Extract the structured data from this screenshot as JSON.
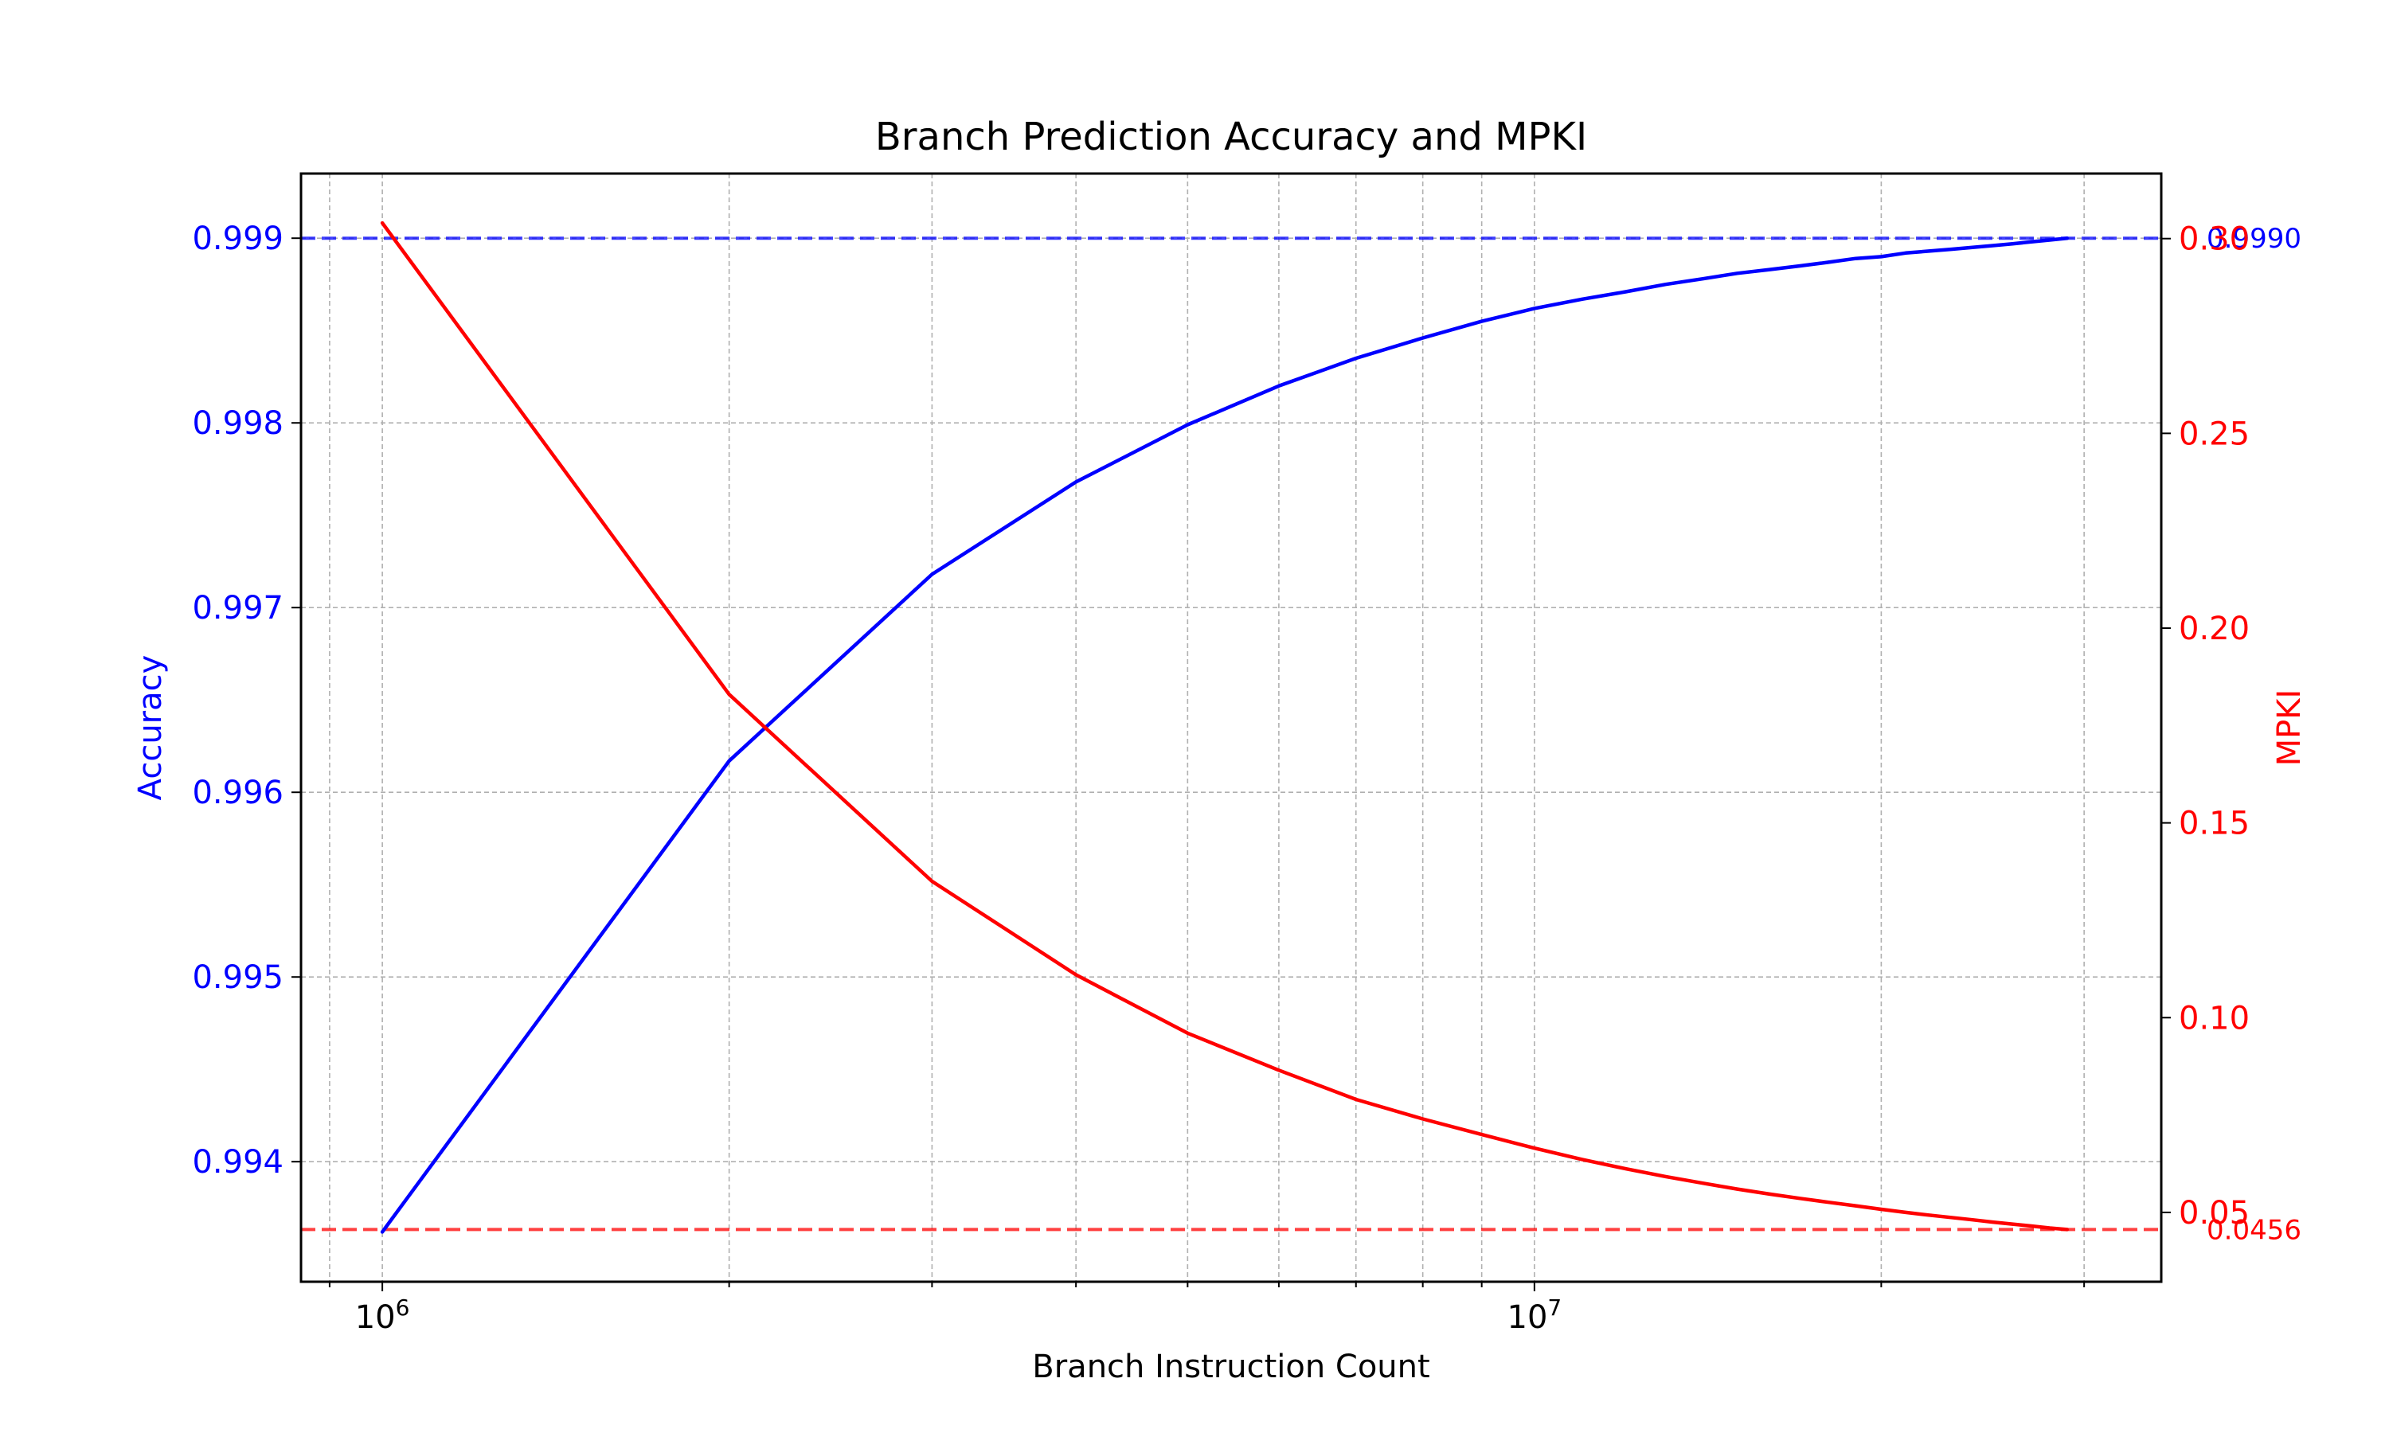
{
  "chart_data": {
    "type": "line",
    "title": "Branch Prediction Accuracy and MPKI",
    "xlabel": "Branch Instruction Count",
    "xscale": "log",
    "xlim": [
      850000,
      35000000
    ],
    "x_ticks": [
      {
        "value": 1000000,
        "base": "10",
        "exp": "6"
      },
      {
        "value": 10000000,
        "base": "10",
        "exp": "7"
      }
    ],
    "grid": true,
    "y_left": {
      "label": "Accuracy",
      "color": "#0000ff",
      "lim": [
        0.99335,
        0.99935
      ],
      "ticks": [
        "0.994",
        "0.995",
        "0.996",
        "0.997",
        "0.998",
        "0.999"
      ]
    },
    "y_right": {
      "label": "MPKI",
      "color": "#ff0000",
      "lim": [
        0.0322,
        0.3167
      ],
      "ticks": [
        "0.05",
        "0.10",
        "0.15",
        "0.20",
        "0.25",
        "0.30"
      ]
    },
    "x": [
      1000000,
      2000000,
      3000000,
      4000000,
      5000000,
      6000000,
      7000000,
      8000000,
      9000000,
      10000000,
      11000000,
      12000000,
      13000000,
      14000000,
      15000000,
      16000000,
      17000000,
      18000000,
      19000000,
      20000000,
      21000000,
      22000000,
      23000000,
      24000000,
      25000000,
      26000000,
      27000000,
      28000000,
      29000000
    ],
    "series": [
      {
        "name": "Accuracy",
        "axis": "left",
        "color": "#0000ff",
        "values": [
          0.99362,
          0.99617,
          0.99718,
          0.99768,
          0.99799,
          0.9982,
          0.99835,
          0.99846,
          0.99855,
          0.99862,
          0.99867,
          0.99871,
          0.99875,
          0.99878,
          0.99881,
          0.99883,
          0.99885,
          0.99887,
          0.99889,
          0.9989,
          0.99892,
          0.99893,
          0.99894,
          0.99895,
          0.99896,
          0.99897,
          0.99898,
          0.99899,
          0.999
        ]
      },
      {
        "name": "MPKI",
        "axis": "right",
        "color": "#ff0000",
        "values": [
          0.304,
          0.183,
          0.135,
          0.111,
          0.096,
          0.0865,
          0.079,
          0.074,
          0.07,
          0.0665,
          0.0636,
          0.0612,
          0.0592,
          0.0575,
          0.056,
          0.0547,
          0.0536,
          0.0526,
          0.0517,
          0.0508,
          0.05,
          0.0493,
          0.0487,
          0.0481,
          0.0475,
          0.047,
          0.0465,
          0.046,
          0.0456
        ]
      }
    ],
    "reference_lines": [
      {
        "axis": "left",
        "value": 0.999,
        "label": "0.9990",
        "color": "#0000ff"
      },
      {
        "axis": "right",
        "value": 0.0456,
        "label": "0.0456",
        "color": "#ff0000"
      }
    ]
  }
}
